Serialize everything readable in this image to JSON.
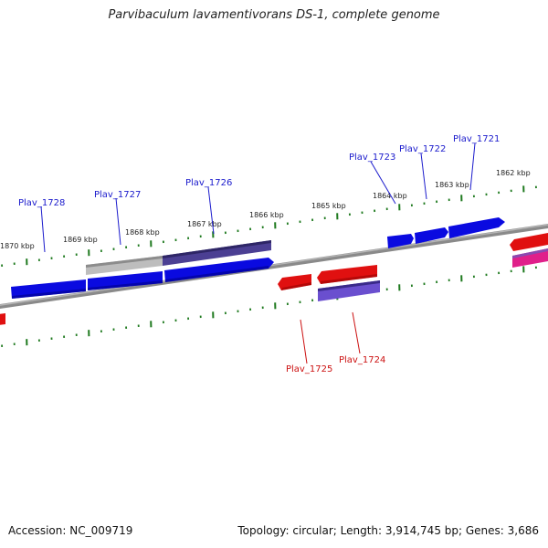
{
  "title": "Parvibaculum lavamentivorans DS-1, complete genome",
  "footer": {
    "accession": "Accession: NC_009719",
    "topology": "Topology: circular; Length: 3,914,745 bp; Genes: 3,686"
  },
  "colors": {
    "backbone": "#7a7a7a",
    "tick": "#1f7a1f",
    "forward_label": "#1a1acc",
    "reverse_label": "#cc1111",
    "gene_blue": "#0a0ae0",
    "gene_red": "#e01010",
    "gene_purple": "#4a3f95",
    "gene_grey": "#b8b8b8",
    "gene_violet": "#6a4fcf",
    "gene_pink": "#e0208a"
  },
  "kbp_labels": [
    "1870 kbp",
    "1869 kbp",
    "1868 kbp",
    "1867 kbp",
    "1866 kbp",
    "1865 kbp",
    "1864 kbp",
    "1863 kbp",
    "1862 kbp"
  ],
  "gene_labels": {
    "forward": [
      "Plav_1728",
      "Plav_1727",
      "Plav_1726",
      "Plav_1723",
      "Plav_1722",
      "Plav_1721"
    ],
    "reverse": [
      "Plav_1725",
      "Plav_1724"
    ]
  }
}
